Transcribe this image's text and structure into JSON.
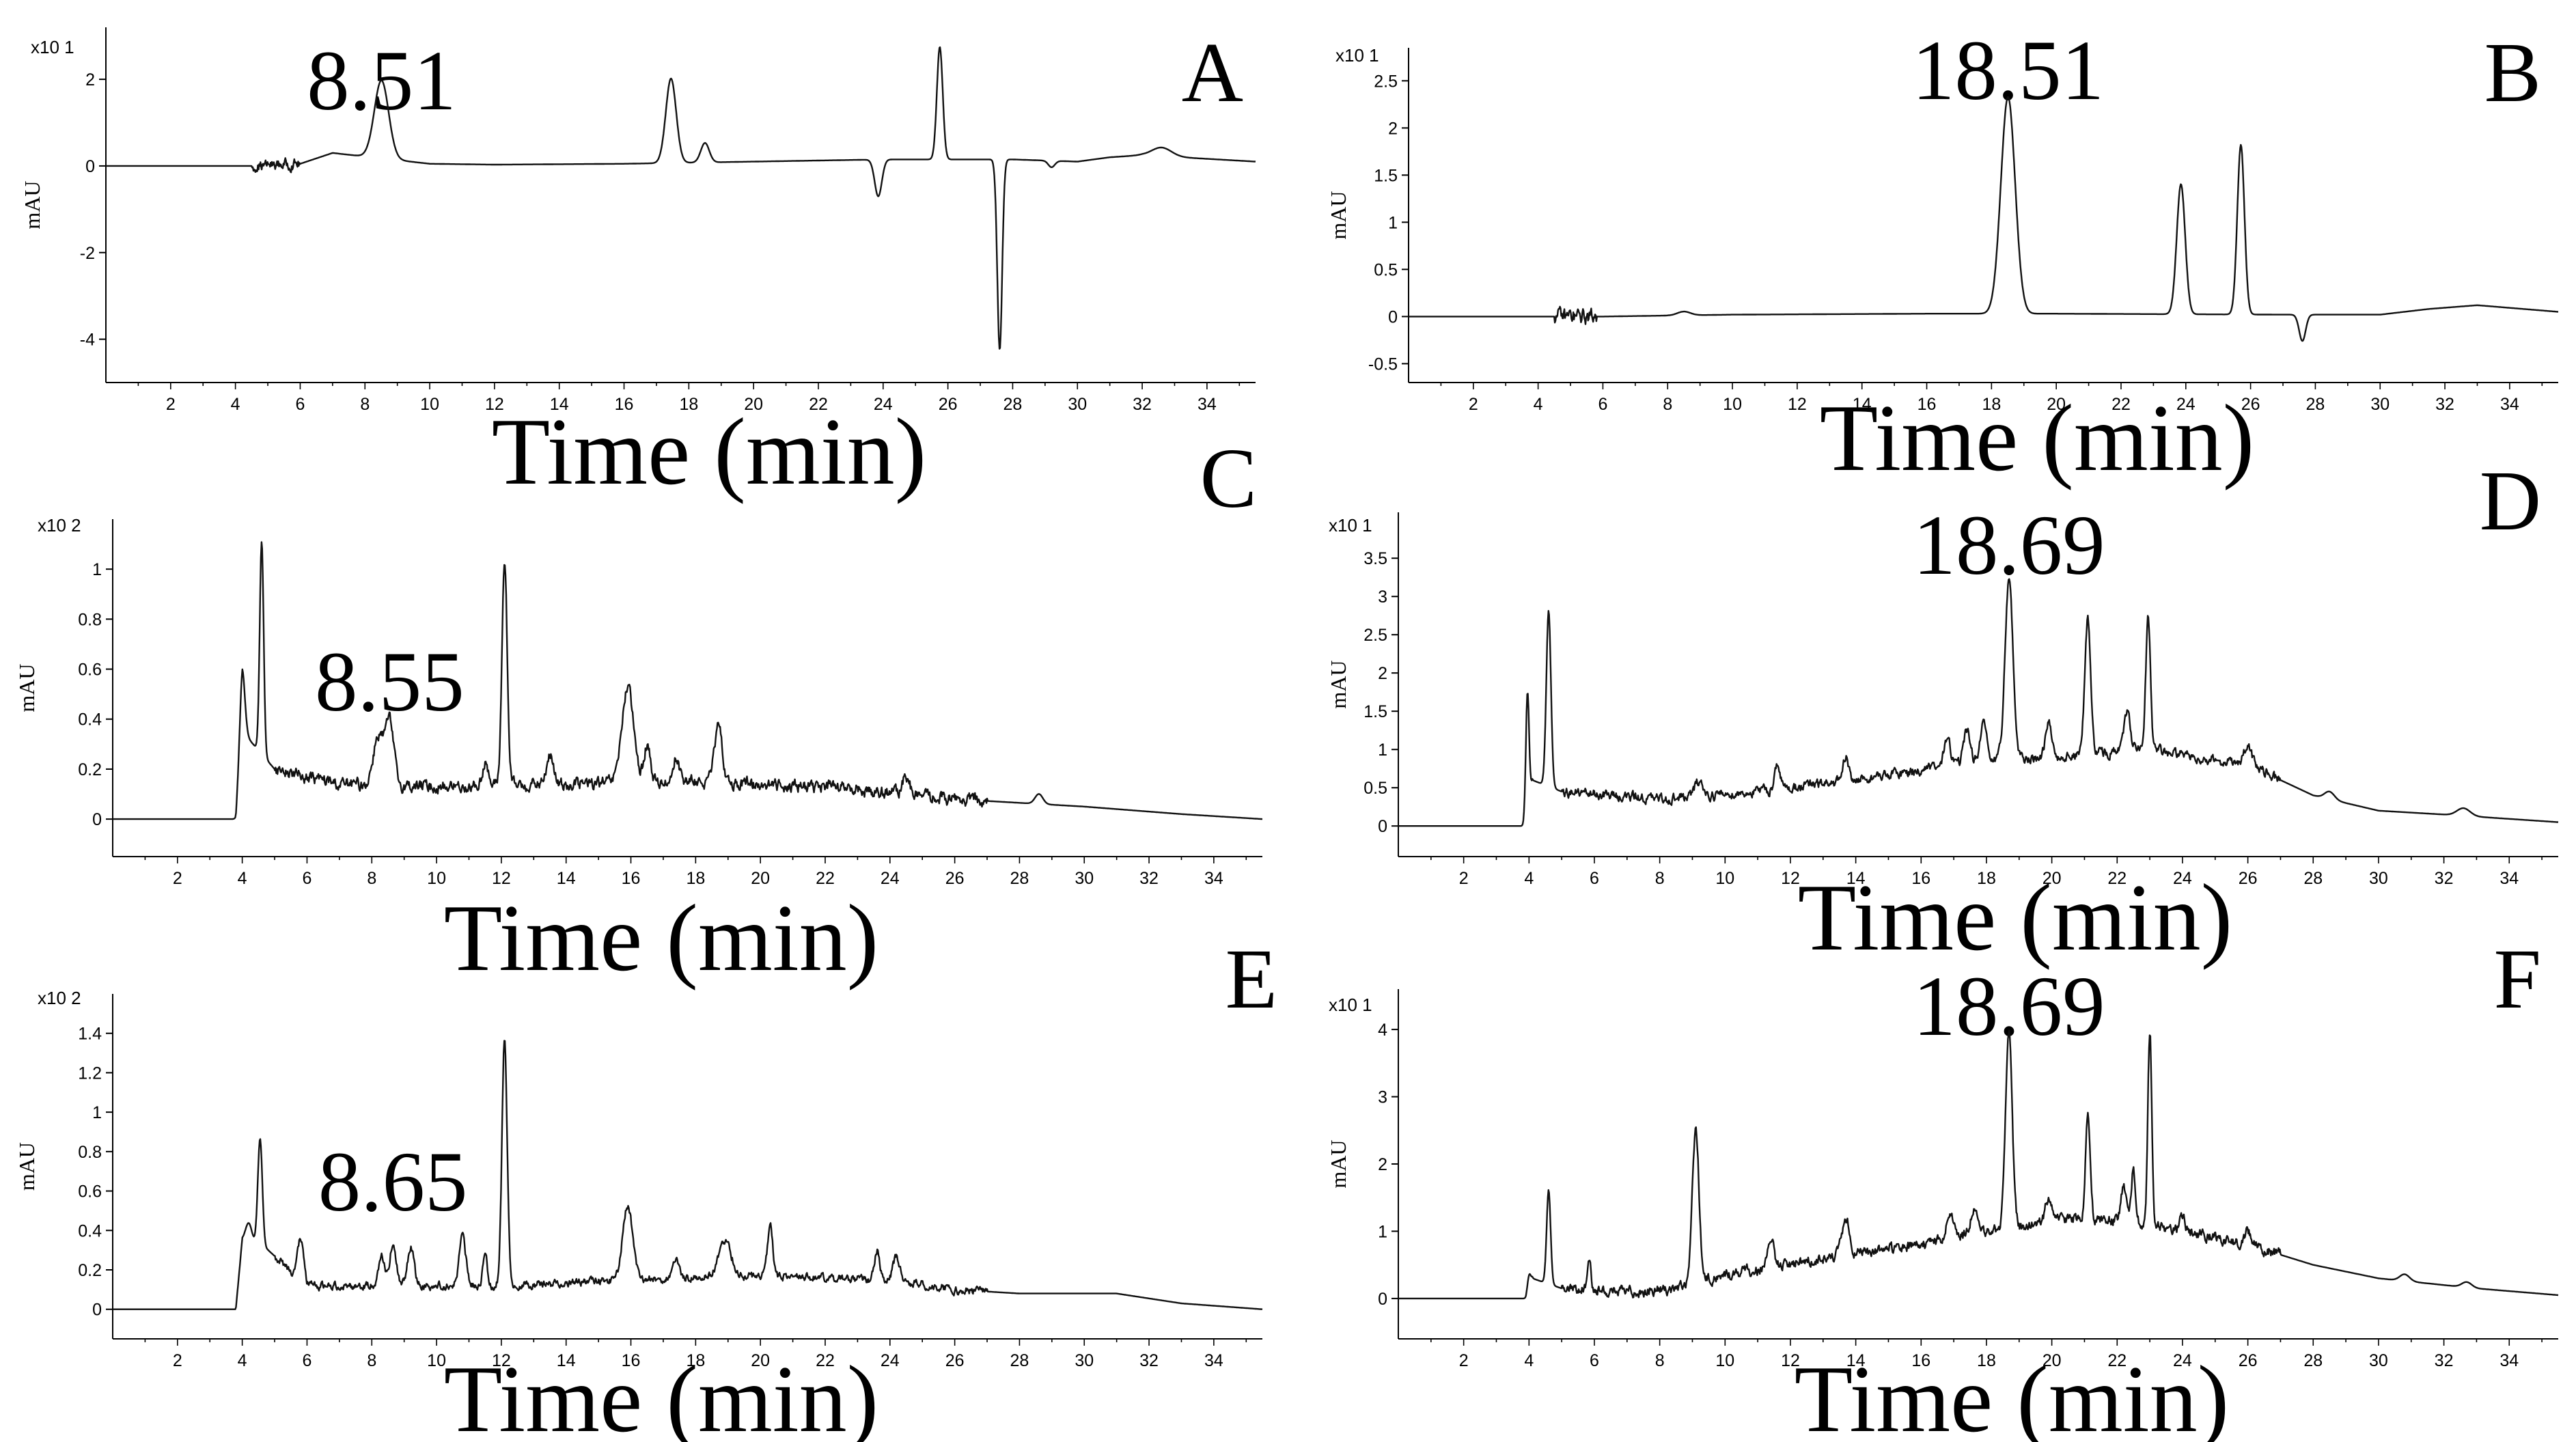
{
  "figure": {
    "description_panels": [
      "A",
      "B",
      "C",
      "D",
      "E",
      "F"
    ]
  },
  "chart_data": [
    {
      "id": "A",
      "type": "line",
      "panel_letter": "A",
      "xlabel": "Time (min)",
      "ylabel": "mAU",
      "multiplier_label": "x10 1",
      "peak_label": "8.51",
      "peak_x": 8.51,
      "xlim": [
        0,
        35.5
      ],
      "ylim": [
        -5,
        3.2
      ],
      "yticks": [
        -4,
        -2,
        0,
        2
      ],
      "ytick_labels": [
        "-4",
        "-2",
        "0",
        "2"
      ],
      "xticks": [
        2,
        4,
        6,
        8,
        10,
        12,
        14,
        16,
        18,
        20,
        22,
        24,
        26,
        28,
        30,
        32,
        34
      ],
      "xtick_labels": [
        "2",
        "4",
        "6",
        "8",
        "10",
        "12",
        "14",
        "16",
        "18",
        "20",
        "22",
        "24",
        "26",
        "28",
        "30",
        "32",
        "34"
      ],
      "baseline": [
        [
          0,
          0
        ],
        [
          4.5,
          0
        ],
        [
          6,
          0.05
        ],
        [
          7,
          0.3
        ],
        [
          10,
          0.05
        ],
        [
          12,
          0.03
        ],
        [
          16,
          0.05
        ],
        [
          20,
          0.1
        ],
        [
          24,
          0.15
        ],
        [
          28,
          0.15
        ],
        [
          30,
          0.1
        ],
        [
          31,
          0.2
        ],
        [
          32,
          0.25
        ],
        [
          35.5,
          0.1
        ]
      ],
      "peaks": [
        {
          "t": 8.51,
          "h": 1.8,
          "w": 0.22
        },
        {
          "t": 17.45,
          "h": 1.95,
          "w": 0.16
        },
        {
          "t": 18.5,
          "h": 0.45,
          "w": 0.13
        },
        {
          "t": 23.85,
          "h": -0.85,
          "w": 0.11
        },
        {
          "t": 25.75,
          "h": 2.6,
          "w": 0.09
        },
        {
          "t": 27.6,
          "h": -4.4,
          "w": 0.075
        },
        {
          "t": 32.6,
          "h": 0.2,
          "w": 0.3
        },
        {
          "t": 29.2,
          "h": -0.15,
          "w": 0.1
        }
      ],
      "noise": [
        [
          4.5,
          6.0,
          0.15
        ]
      ]
    },
    {
      "id": "B",
      "type": "line",
      "panel_letter": "B",
      "xlabel": "Time (min)",
      "ylabel": "mAU",
      "multiplier_label": "x10 1",
      "peak_label": "18.51",
      "peak_x": 18.51,
      "xlim": [
        0,
        35.5
      ],
      "ylim": [
        -0.7,
        2.85
      ],
      "yticks": [
        -0.5,
        0,
        0.5,
        1,
        1.5,
        2,
        2.5
      ],
      "ytick_labels": [
        "-0.5",
        "0",
        "0.5",
        "1",
        "1.5",
        "2",
        "2.5"
      ],
      "xticks": [
        2,
        4,
        6,
        8,
        10,
        12,
        14,
        16,
        18,
        20,
        22,
        24,
        26,
        28,
        30,
        32,
        34
      ],
      "xtick_labels": [
        "2",
        "4",
        "6",
        "8",
        "10",
        "12",
        "14",
        "16",
        "18",
        "20",
        "22",
        "24",
        "26",
        "28",
        "30",
        "32",
        "34"
      ],
      "baseline": [
        [
          0,
          0
        ],
        [
          4.5,
          0
        ],
        [
          6,
          0.0
        ],
        [
          10,
          0.02
        ],
        [
          16,
          0.03
        ],
        [
          20,
          0.03
        ],
        [
          27,
          0.02
        ],
        [
          30,
          0.02
        ],
        [
          31.5,
          0.08
        ],
        [
          33,
          0.12
        ],
        [
          35.5,
          0.05
        ]
      ],
      "peaks": [
        {
          "t": 18.51,
          "h": 2.3,
          "w": 0.22
        },
        {
          "t": 23.85,
          "h": 1.38,
          "w": 0.13
        },
        {
          "t": 25.7,
          "h": 1.8,
          "w": 0.11
        },
        {
          "t": 27.6,
          "h": -0.28,
          "w": 0.1
        },
        {
          "t": 8.5,
          "h": 0.04,
          "w": 0.2
        }
      ],
      "noise": [
        [
          4.5,
          5.8,
          0.1
        ]
      ]
    },
    {
      "id": "C",
      "type": "line",
      "panel_letter": "C",
      "xlabel": "Time (min)",
      "ylabel": "mAU",
      "multiplier_label": "x10 2",
      "peak_label": "8.55",
      "peak_x": 8.55,
      "xlim": [
        0,
        35.5
      ],
      "ylim": [
        -0.15,
        1.2
      ],
      "yticks": [
        0,
        0.2,
        0.4,
        0.6,
        0.8,
        1
      ],
      "ytick_labels": [
        "0",
        "0.2",
        "0.4",
        "0.6",
        "0.8",
        "1"
      ],
      "xticks": [
        2,
        4,
        6,
        8,
        10,
        12,
        14,
        16,
        18,
        20,
        22,
        24,
        26,
        28,
        30,
        32,
        34
      ],
      "xtick_labels": [
        "2",
        "4",
        "6",
        "8",
        "10",
        "12",
        "14",
        "16",
        "18",
        "20",
        "22",
        "24",
        "26",
        "28",
        "30",
        "32",
        "34"
      ],
      "baseline": [
        [
          0,
          0
        ],
        [
          3.8,
          0
        ],
        [
          4.0,
          0.35
        ],
        [
          5,
          0.2
        ],
        [
          7,
          0.14
        ],
        [
          10,
          0.13
        ],
        [
          14,
          0.14
        ],
        [
          18,
          0.15
        ],
        [
          22,
          0.13
        ],
        [
          26,
          0.08
        ],
        [
          30,
          0.05
        ],
        [
          33,
          0.02
        ],
        [
          35.5,
          0.0
        ]
      ],
      "peaks": [
        {
          "t": 4.0,
          "h": 0.25,
          "w": 0.08
        },
        {
          "t": 4.6,
          "h": 0.85,
          "w": 0.06
        },
        {
          "t": 8.2,
          "h": 0.2,
          "w": 0.15
        },
        {
          "t": 8.55,
          "h": 0.25,
          "w": 0.13
        },
        {
          "t": 11.5,
          "h": 0.1,
          "w": 0.08
        },
        {
          "t": 12.1,
          "h": 0.9,
          "w": 0.08
        },
        {
          "t": 13.5,
          "h": 0.12,
          "w": 0.1
        },
        {
          "t": 15.9,
          "h": 0.38,
          "w": 0.18
        },
        {
          "t": 16.5,
          "h": 0.15,
          "w": 0.1
        },
        {
          "t": 17.4,
          "h": 0.1,
          "w": 0.1
        },
        {
          "t": 18.7,
          "h": 0.22,
          "w": 0.12
        },
        {
          "t": 24.5,
          "h": 0.08,
          "w": 0.1
        },
        {
          "t": 28.6,
          "h": 0.04,
          "w": 0.12
        }
      ],
      "noise": [
        [
          5,
          27,
          0.03
        ]
      ]
    },
    {
      "id": "D",
      "type": "line",
      "panel_letter": "D",
      "xlabel": "Time (min)",
      "ylabel": "mAU",
      "multiplier_label": "x10 1",
      "peak_label": "18.69",
      "peak_x": 18.69,
      "xlim": [
        0,
        35.5
      ],
      "ylim": [
        -0.4,
        4.1
      ],
      "yticks": [
        0,
        0.5,
        1,
        1.5,
        2,
        2.5,
        3,
        3.5
      ],
      "ytick_labels": [
        "0",
        "0.5",
        "1",
        "1.5",
        "2",
        "2.5",
        "3",
        "3.5"
      ],
      "xticks": [
        2,
        4,
        6,
        8,
        10,
        12,
        14,
        16,
        18,
        20,
        22,
        24,
        26,
        28,
        30,
        32,
        34
      ],
      "xtick_labels": [
        "2",
        "4",
        "6",
        "8",
        "10",
        "12",
        "14",
        "16",
        "18",
        "20",
        "22",
        "24",
        "26",
        "28",
        "30",
        "32",
        "34"
      ],
      "baseline": [
        [
          0,
          0
        ],
        [
          3.9,
          0
        ],
        [
          4.1,
          0.6
        ],
        [
          5,
          0.45
        ],
        [
          8,
          0.35
        ],
        [
          11,
          0.45
        ],
        [
          14,
          0.6
        ],
        [
          17,
          0.8
        ],
        [
          20,
          0.9
        ],
        [
          23,
          1.0
        ],
        [
          26,
          0.8
        ],
        [
          28,
          0.4
        ],
        [
          30,
          0.2
        ],
        [
          32,
          0.15
        ],
        [
          35.5,
          0.05
        ]
      ],
      "peaks": [
        {
          "t": 3.95,
          "h": 1.6,
          "w": 0.05
        },
        {
          "t": 4.6,
          "h": 2.3,
          "w": 0.07
        },
        {
          "t": 9.2,
          "h": 0.2,
          "w": 0.12
        },
        {
          "t": 11.6,
          "h": 0.35,
          "w": 0.08
        },
        {
          "t": 13.7,
          "h": 0.3,
          "w": 0.08
        },
        {
          "t": 16.8,
          "h": 0.35,
          "w": 0.1
        },
        {
          "t": 17.4,
          "h": 0.45,
          "w": 0.1
        },
        {
          "t": 17.9,
          "h": 0.5,
          "w": 0.1
        },
        {
          "t": 18.69,
          "h": 2.4,
          "w": 0.12
        },
        {
          "t": 19.9,
          "h": 0.45,
          "w": 0.1
        },
        {
          "t": 21.1,
          "h": 1.75,
          "w": 0.09
        },
        {
          "t": 22.3,
          "h": 0.5,
          "w": 0.1
        },
        {
          "t": 22.95,
          "h": 1.75,
          "w": 0.07
        },
        {
          "t": 26.0,
          "h": 0.25,
          "w": 0.12
        },
        {
          "t": 28.5,
          "h": 0.1,
          "w": 0.15
        },
        {
          "t": 32.6,
          "h": 0.1,
          "w": 0.2
        }
      ],
      "noise": [
        [
          5,
          27,
          0.08
        ]
      ]
    },
    {
      "id": "E",
      "type": "line",
      "panel_letter": "E",
      "xlabel": "Time (min)",
      "ylabel": "mAU",
      "multiplier_label": "x10 2",
      "peak_label": "8.65",
      "peak_x": 8.65,
      "xlim": [
        0,
        35.5
      ],
      "ylim": [
        -0.15,
        1.6
      ],
      "yticks": [
        0,
        0.2,
        0.4,
        0.6,
        0.8,
        1,
        1.2,
        1.4
      ],
      "ytick_labels": [
        "0",
        "0.2",
        "0.4",
        "0.6",
        "0.8",
        "1",
        "1.2",
        "1.4"
      ],
      "xticks": [
        2,
        4,
        6,
        8,
        10,
        12,
        14,
        16,
        18,
        20,
        22,
        24,
        26,
        28,
        30,
        32,
        34
      ],
      "xtick_labels": [
        "2",
        "4",
        "6",
        "8",
        "10",
        "12",
        "14",
        "16",
        "18",
        "20",
        "22",
        "24",
        "26",
        "28",
        "30",
        "32",
        "34"
      ],
      "baseline": [
        [
          0,
          0
        ],
        [
          3.8,
          0
        ],
        [
          4.0,
          0.35
        ],
        [
          4.8,
          0.3
        ],
        [
          6,
          0.12
        ],
        [
          8,
          0.12
        ],
        [
          12,
          0.12
        ],
        [
          16,
          0.15
        ],
        [
          20,
          0.17
        ],
        [
          24,
          0.15
        ],
        [
          26,
          0.1
        ],
        [
          28,
          0.08
        ],
        [
          31,
          0.08
        ],
        [
          33,
          0.03
        ],
        [
          35.5,
          0.0
        ]
      ],
      "peaks": [
        {
          "t": 4.2,
          "h": 0.1,
          "w": 0.1
        },
        {
          "t": 4.55,
          "h": 0.55,
          "w": 0.07
        },
        {
          "t": 5.8,
          "h": 0.2,
          "w": 0.1
        },
        {
          "t": 8.3,
          "h": 0.15,
          "w": 0.1
        },
        {
          "t": 8.65,
          "h": 0.2,
          "w": 0.1
        },
        {
          "t": 9.2,
          "h": 0.2,
          "w": 0.1
        },
        {
          "t": 10.8,
          "h": 0.25,
          "w": 0.1
        },
        {
          "t": 11.5,
          "h": 0.15,
          "w": 0.07
        },
        {
          "t": 12.1,
          "h": 1.25,
          "w": 0.08
        },
        {
          "t": 15.9,
          "h": 0.38,
          "w": 0.15
        },
        {
          "t": 17.4,
          "h": 0.08,
          "w": 0.1
        },
        {
          "t": 18.9,
          "h": 0.18,
          "w": 0.2
        },
        {
          "t": 20.3,
          "h": 0.25,
          "w": 0.08
        },
        {
          "t": 23.6,
          "h": 0.15,
          "w": 0.08
        },
        {
          "t": 24.2,
          "h": 0.12,
          "w": 0.1
        }
      ],
      "noise": [
        [
          5,
          27,
          0.025
        ]
      ]
    },
    {
      "id": "F",
      "type": "line",
      "panel_letter": "F",
      "xlabel": "Time (min)",
      "ylabel": "mAU",
      "multiplier_label": "x10 1",
      "peak_label": "18.69",
      "peak_x": 18.69,
      "xlim": [
        0,
        35.5
      ],
      "ylim": [
        -0.6,
        4.6
      ],
      "yticks": [
        0,
        1,
        2,
        3,
        4
      ],
      "ytick_labels": [
        "0",
        "1",
        "2",
        "3",
        "4"
      ],
      "xticks": [
        2,
        4,
        6,
        8,
        10,
        12,
        14,
        16,
        18,
        20,
        22,
        24,
        26,
        28,
        30,
        32,
        34
      ],
      "xtick_labels": [
        "2",
        "4",
        "6",
        "8",
        "10",
        "12",
        "14",
        "16",
        "18",
        "20",
        "22",
        "24",
        "26",
        "28",
        "30",
        "32",
        "34"
      ],
      "baseline": [
        [
          0,
          0
        ],
        [
          3.9,
          0
        ],
        [
          4.1,
          0.3
        ],
        [
          5,
          0.15
        ],
        [
          7,
          0.1
        ],
        [
          8.5,
          0.15
        ],
        [
          10,
          0.35
        ],
        [
          13,
          0.6
        ],
        [
          16,
          0.8
        ],
        [
          18,
          1.0
        ],
        [
          21,
          1.2
        ],
        [
          23,
          1.1
        ],
        [
          26,
          0.8
        ],
        [
          28,
          0.5
        ],
        [
          30,
          0.3
        ],
        [
          33,
          0.15
        ],
        [
          35.5,
          0.05
        ]
      ],
      "peaks": [
        {
          "t": 4.0,
          "h": 0.2,
          "w": 0.05
        },
        {
          "t": 4.6,
          "h": 1.4,
          "w": 0.06
        },
        {
          "t": 5.85,
          "h": 0.5,
          "w": 0.05
        },
        {
          "t": 9.1,
          "h": 2.3,
          "w": 0.1
        },
        {
          "t": 11.4,
          "h": 0.45,
          "w": 0.08
        },
        {
          "t": 13.7,
          "h": 0.5,
          "w": 0.12
        },
        {
          "t": 16.9,
          "h": 0.4,
          "w": 0.1
        },
        {
          "t": 17.6,
          "h": 0.35,
          "w": 0.1
        },
        {
          "t": 18.69,
          "h": 2.9,
          "w": 0.1
        },
        {
          "t": 19.9,
          "h": 0.35,
          "w": 0.1
        },
        {
          "t": 21.1,
          "h": 1.5,
          "w": 0.07
        },
        {
          "t": 22.2,
          "h": 0.5,
          "w": 0.08
        },
        {
          "t": 22.5,
          "h": 0.8,
          "w": 0.06
        },
        {
          "t": 23.0,
          "h": 2.9,
          "w": 0.06
        },
        {
          "t": 24.0,
          "h": 0.25,
          "w": 0.08
        },
        {
          "t": 26.0,
          "h": 0.2,
          "w": 0.1
        },
        {
          "t": 30.8,
          "h": 0.1,
          "w": 0.15
        },
        {
          "t": 32.7,
          "h": 0.08,
          "w": 0.15
        }
      ],
      "noise": [
        [
          5,
          27,
          0.1
        ]
      ]
    }
  ]
}
